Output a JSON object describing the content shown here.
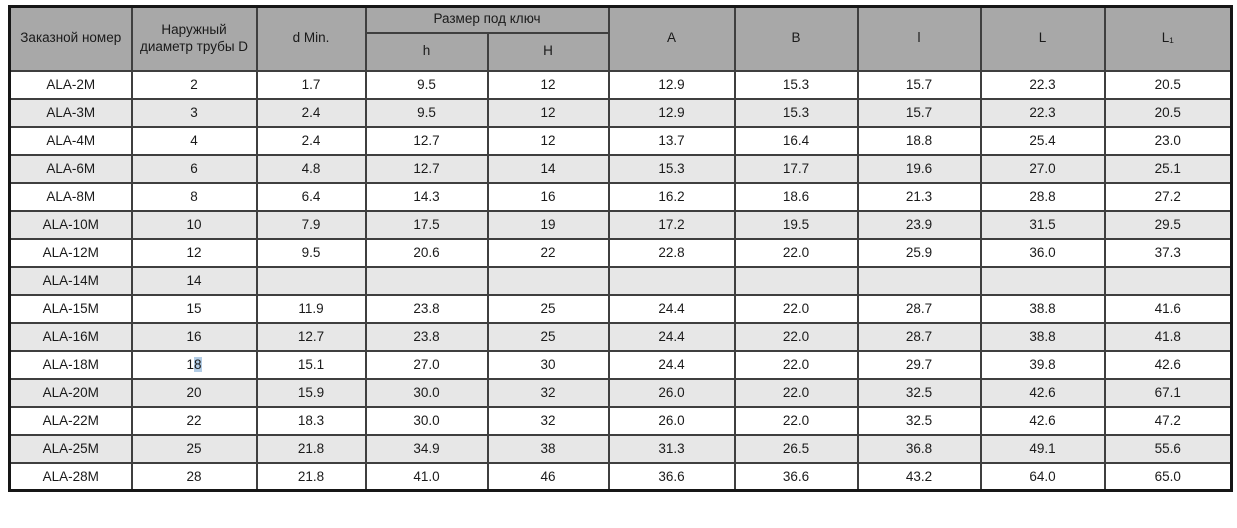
{
  "colors": {
    "header_bg": "#a8a8a8",
    "row_bg": "#ffffff",
    "row_alt_bg": "#e7e7e7",
    "border_color": "#3f3f3f",
    "outer_border": "#161616",
    "text_color": "#1a1a1a",
    "selection_highlight": "#b3cde6"
  },
  "table": {
    "header": {
      "order_number": "Заказной номер",
      "tube_diameter": "Наружный диаметр трубы D",
      "d_min": "d Min.",
      "wrench_size": "Размер под ключ",
      "h": "h",
      "H": "H",
      "A": "A",
      "B": "B",
      "l": "l",
      "L": "L",
      "L1": "L₁"
    },
    "rows": [
      {
        "cells": [
          "ALA-2M",
          "2",
          "1.7",
          "9.5",
          "12",
          "12.9",
          "15.3",
          "15.7",
          "22.3",
          "20.5"
        ]
      },
      {
        "cells": [
          "ALA-3M",
          "3",
          "2.4",
          "9.5",
          "12",
          "12.9",
          "15.3",
          "15.7",
          "22.3",
          "20.5"
        ]
      },
      {
        "cells": [
          "ALA-4M",
          "4",
          "2.4",
          "12.7",
          "12",
          "13.7",
          "16.4",
          "18.8",
          "25.4",
          "23.0"
        ]
      },
      {
        "cells": [
          "ALA-6M",
          "6",
          "4.8",
          "12.7",
          "14",
          "15.3",
          "17.7",
          "19.6",
          "27.0",
          "25.1"
        ]
      },
      {
        "cells": [
          "ALA-8M",
          "8",
          "6.4",
          "14.3",
          "16",
          "16.2",
          "18.6",
          "21.3",
          "28.8",
          "27.2"
        ]
      },
      {
        "cells": [
          "ALA-10M",
          "10",
          "7.9",
          "17.5",
          "19",
          "17.2",
          "19.5",
          "23.9",
          "31.5",
          "29.5"
        ]
      },
      {
        "cells": [
          "ALA-12M",
          "12",
          "9.5",
          "20.6",
          "22",
          "22.8",
          "22.0",
          "25.9",
          "36.0",
          "37.3"
        ]
      },
      {
        "cells": [
          "ALA-14M",
          "14",
          "",
          "",
          "",
          "",
          "",
          "",
          "",
          ""
        ]
      },
      {
        "cells": [
          "ALA-15M",
          "15",
          "11.9",
          "23.8",
          "25",
          "24.4",
          "22.0",
          "28.7",
          "38.8",
          "41.6"
        ]
      },
      {
        "cells": [
          "ALA-16M",
          "16",
          "12.7",
          "23.8",
          "25",
          "24.4",
          "22.0",
          "28.7",
          "38.8",
          "41.8"
        ]
      },
      {
        "cells": [
          "ALA-18M",
          {
            "pre": "1",
            "sel": "8"
          },
          "15.1",
          "27.0",
          "30",
          "24.4",
          "22.0",
          "29.7",
          "39.8",
          "42.6"
        ]
      },
      {
        "cells": [
          "ALA-20M",
          "20",
          "15.9",
          "30.0",
          "32",
          "26.0",
          "22.0",
          "32.5",
          "42.6",
          "67.1"
        ]
      },
      {
        "cells": [
          "ALA-22M",
          "22",
          "18.3",
          "30.0",
          "32",
          "26.0",
          "22.0",
          "32.5",
          "42.6",
          "47.2"
        ]
      },
      {
        "cells": [
          "ALA-25M",
          "25",
          "21.8",
          "34.9",
          "38",
          "31.3",
          "26.5",
          "36.8",
          "49.1",
          "55.6"
        ]
      },
      {
        "cells": [
          "ALA-28M",
          "28",
          "21.8",
          "41.0",
          "46",
          "36.6",
          "36.6",
          "43.2",
          "64.0",
          "65.0"
        ]
      }
    ]
  }
}
